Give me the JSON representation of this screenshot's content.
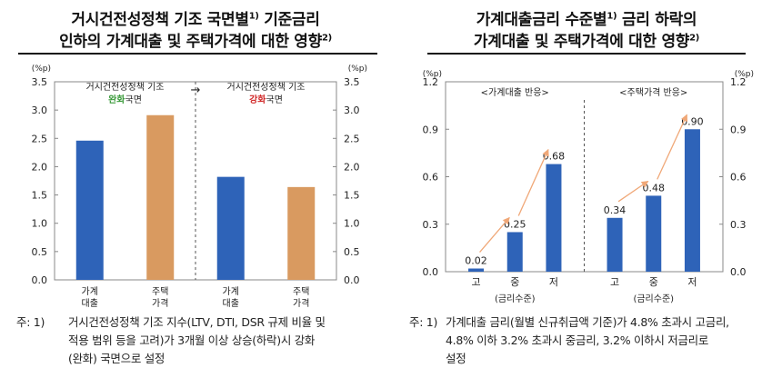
{
  "left": {
    "title_line1": "거시건전성정책 기조 국면별",
    "title_line1_sup": "1)",
    "title_line1_tail": "기준금리",
    "title_line2": "인하의 가계대출 및 주택가격에 대한 영향",
    "title_line2_sup": "2)",
    "note_label": "주: 1)",
    "note_lines": [
      "거시건전성정책 기조 지수(LTV, DTI, DSR 규제 비율 및",
      "적용 범위 등을 고려)가 3개월 이상 상승(하락)시 강화",
      "(완화) 국면으로 설정"
    ]
  },
  "right": {
    "title_line1": "가계대출금리 수준별",
    "title_line1_sup": "1)",
    "title_line1_tail": "금리 하락의",
    "title_line2": "가계대출 및 주택가격에 대한 영향",
    "title_line2_sup": "2)",
    "note_label": "주: 1)",
    "note_lines": [
      "가계대출 금리(월별 신규취급액 기준)가 4.8% 초과시 고금리,",
      "4.8% 이하 3.2% 초과시 중금리, 3.2% 이하시 저금리로",
      "설정"
    ]
  },
  "colors": {
    "blue": "#2e63b8",
    "orange": "#d99a60",
    "green": "#3a9a3a",
    "red": "#d12a2a",
    "arrow": "#f0a878"
  },
  "chart_data": [
    {
      "type": "bar",
      "unit_left": "(%p)",
      "unit_right": "(%p)",
      "ylim": [
        0,
        3.5
      ],
      "yticks": [
        "0.0",
        "0.5",
        "1.0",
        "1.5",
        "2.0",
        "2.5",
        "3.0",
        "3.5"
      ],
      "categories": [
        "가계\n대출",
        "주택\n가격",
        "가계\n대출",
        "주택\n가격"
      ],
      "values": [
        2.46,
        2.91,
        1.82,
        1.64
      ],
      "bar_colors": [
        "blue",
        "orange",
        "blue",
        "orange"
      ],
      "group_labels": [
        {
          "line1": "거시건전성정책 기조",
          "pre": "",
          "hl": "완화",
          "post": "국면",
          "hl_color": "green"
        },
        {
          "line1": "거시건전성정책 기조",
          "pre": "",
          "hl": "강화",
          "post": "국면",
          "hl_color": "red"
        }
      ],
      "arrow_text": "→"
    },
    {
      "type": "bar",
      "unit_left": "(%p)",
      "unit_right": "(%p)",
      "ylim": [
        0,
        1.2
      ],
      "yticks": [
        "0.0",
        "0.3",
        "0.6",
        "0.9",
        "1.2"
      ],
      "groups": [
        {
          "label": "<가계대출 반응>",
          "categories": [
            "고",
            "중",
            "저"
          ],
          "values": [
            0.02,
            0.25,
            0.68
          ],
          "value_labels": [
            "0.02",
            "0.25",
            "0.68"
          ],
          "axis_label": "(금리수준)"
        },
        {
          "label": "<주택가격 반응>",
          "categories": [
            "고",
            "중",
            "저"
          ],
          "values": [
            0.34,
            0.48,
            0.9
          ],
          "value_labels": [
            "0.34",
            "0.48",
            "0.90"
          ],
          "axis_label": "(금리수준)"
        }
      ]
    }
  ]
}
